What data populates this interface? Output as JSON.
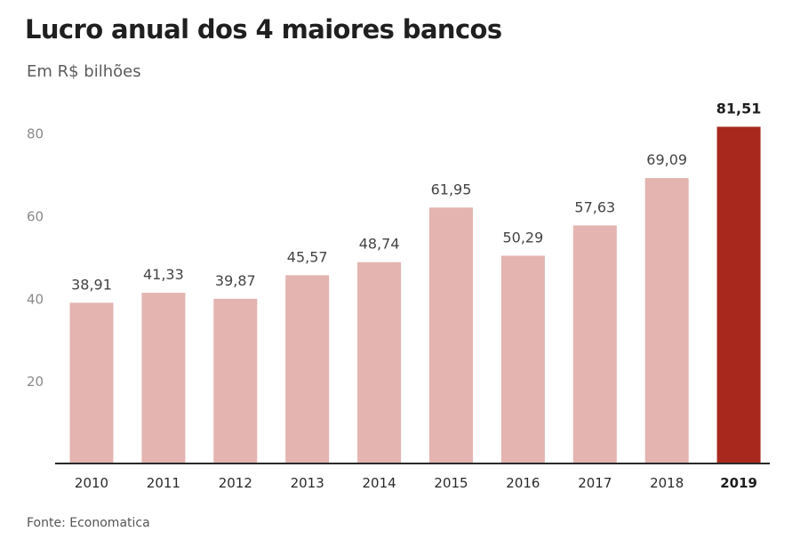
{
  "title": "Lucro anual dos 4 maiores bancos",
  "subtitle": "Em R$ bilhões",
  "source": "Fonte: Economatica",
  "colors": {
    "bar": "#e3b4b0",
    "highlight": "#a8281d",
    "axis": "#2a2a2a"
  },
  "chart_data": {
    "type": "bar",
    "title": "Lucro anual dos 4 maiores bancos",
    "subtitle": "Em R$ bilhões",
    "categories": [
      "2010",
      "2011",
      "2012",
      "2013",
      "2014",
      "2015",
      "2016",
      "2017",
      "2018",
      "2019"
    ],
    "values": [
      38.91,
      41.33,
      39.87,
      45.57,
      48.74,
      61.95,
      50.29,
      57.63,
      69.09,
      81.51
    ],
    "value_labels": [
      "38,91",
      "41,33",
      "39,87",
      "45,57",
      "48,74",
      "61,95",
      "50,29",
      "57,63",
      "69,09",
      "81,51"
    ],
    "highlight_category": "2019",
    "yticks": [
      20,
      40,
      60,
      80
    ],
    "ylim": [
      0,
      87
    ],
    "grid": false,
    "xlabel": "",
    "ylabel": ""
  }
}
